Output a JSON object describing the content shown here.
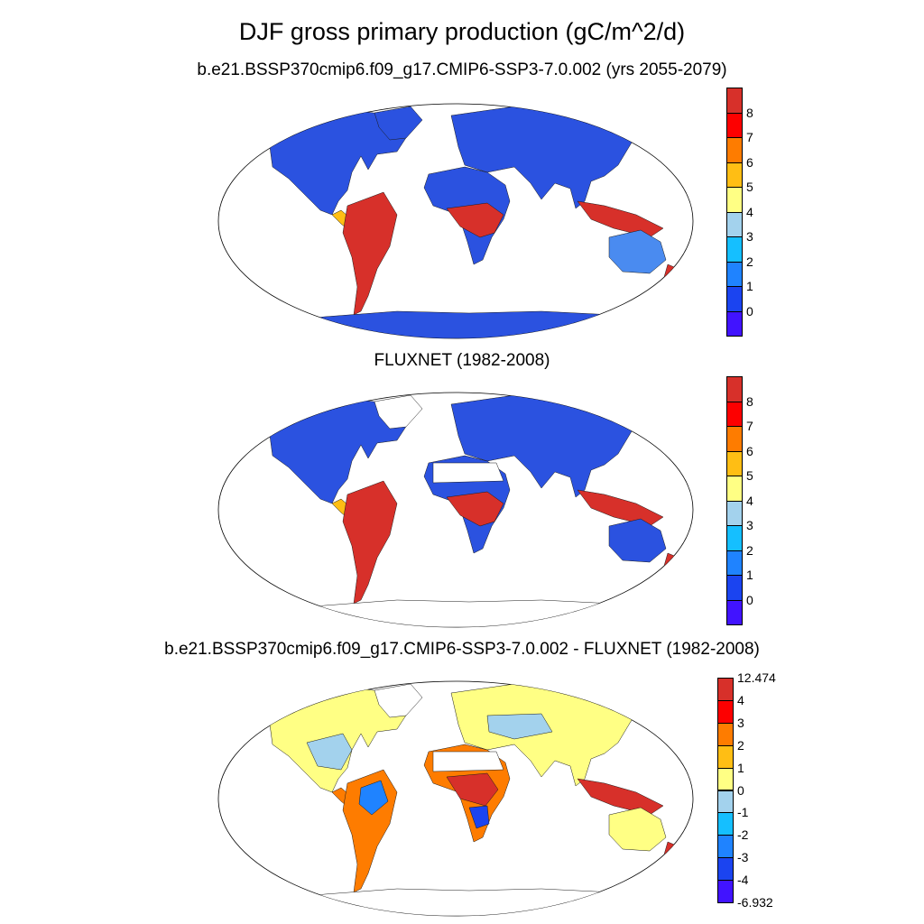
{
  "title": "DJF gross primary production (gC/m^2/d)",
  "panels": [
    {
      "subtitle": "b.e21.BSSP370cmip6.f09_g17.CMIP6-SSP3-7.0.002 (yrs 2055-2079)",
      "colorbar": {
        "labels": [
          "8",
          "7",
          "6",
          "5",
          "4",
          "3",
          "2",
          "1",
          "0"
        ],
        "colors": [
          "#d7302a",
          "#fd0000",
          "#fe7c00",
          "#ffbe14",
          "#ffff84",
          "#a3d2ed",
          "#15bfff",
          "#1f83ff",
          "#1b44f0",
          "#4113ff"
        ]
      }
    },
    {
      "subtitle": "FLUXNET (1982-2008)",
      "colorbar": {
        "labels": [
          "8",
          "7",
          "6",
          "5",
          "4",
          "3",
          "2",
          "1",
          "0"
        ],
        "colors": [
          "#d7302a",
          "#fd0000",
          "#fe7c00",
          "#ffbe14",
          "#ffff84",
          "#a3d2ed",
          "#15bfff",
          "#1f83ff",
          "#1b44f0",
          "#4113ff"
        ]
      }
    },
    {
      "subtitle": "b.e21.BSSP370cmip6.f09_g17.CMIP6-SSP3-7.0.002 - FLUXNET (1982-2008)",
      "colorbar": {
        "labels": [
          "12.474",
          "4",
          "3",
          "2",
          "1",
          "0",
          "-1",
          "-2",
          "-3",
          "-4",
          "-6.932"
        ],
        "colors": [
          "#d7302a",
          "#fd0000",
          "#fe7c00",
          "#ffbe14",
          "#ffff84",
          "#a3d2ed",
          "#15bfff",
          "#1f83ff",
          "#1b44f0",
          "#4113ff"
        ]
      }
    }
  ]
}
